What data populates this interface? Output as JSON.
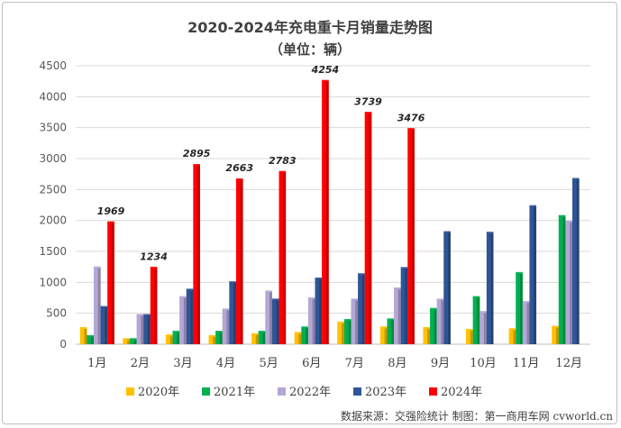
{
  "chart_data": {
    "type": "bar",
    "title": "2020-2024年充电重卡月销量走势图",
    "subtitle": "（单位：辆）",
    "xlabel": "",
    "ylabel": "",
    "ylim": [
      0,
      4500
    ],
    "yticks": [
      0,
      500,
      1000,
      1500,
      2000,
      2500,
      3000,
      3500,
      4000,
      4500
    ],
    "grid": true,
    "legend": "bottom",
    "categories": [
      "1月",
      "2月",
      "3月",
      "4月",
      "5月",
      "6月",
      "7月",
      "8月",
      "9月",
      "10月",
      "11月",
      "12月"
    ],
    "series": [
      {
        "name": "2020年",
        "color": "#ffc000",
        "values": [
          260,
          80,
          140,
          130,
          160,
          180,
          350,
          270,
          260,
          230,
          240,
          280
        ]
      },
      {
        "name": "2021年",
        "color": "#00b050",
        "values": [
          130,
          80,
          200,
          200,
          200,
          270,
          390,
          400,
          570,
          760,
          1150,
          2070
        ]
      },
      {
        "name": "2022年",
        "color": "#b4a7d6",
        "values": [
          1240,
          470,
          760,
          560,
          850,
          740,
          720,
          900,
          720,
          520,
          680,
          1980
        ]
      },
      {
        "name": "2023年",
        "color": "#2f5597",
        "values": [
          600,
          470,
          880,
          1000,
          720,
          1060,
          1130,
          1230,
          1810,
          1800,
          2230,
          2670
        ]
      },
      {
        "name": "2024年",
        "color": "#ff0000",
        "values": [
          1969,
          1234,
          2895,
          2663,
          2783,
          4254,
          3739,
          3476,
          null,
          null,
          null,
          null
        ]
      }
    ],
    "data_labels": {
      "series": "2024年",
      "values": [
        "1969",
        "1234",
        "2895",
        "2663",
        "2783",
        "4254",
        "3739",
        "3476"
      ]
    }
  },
  "source_text": "数据来源：交强险统计 制图：第一商用车网 cvworld.cn"
}
